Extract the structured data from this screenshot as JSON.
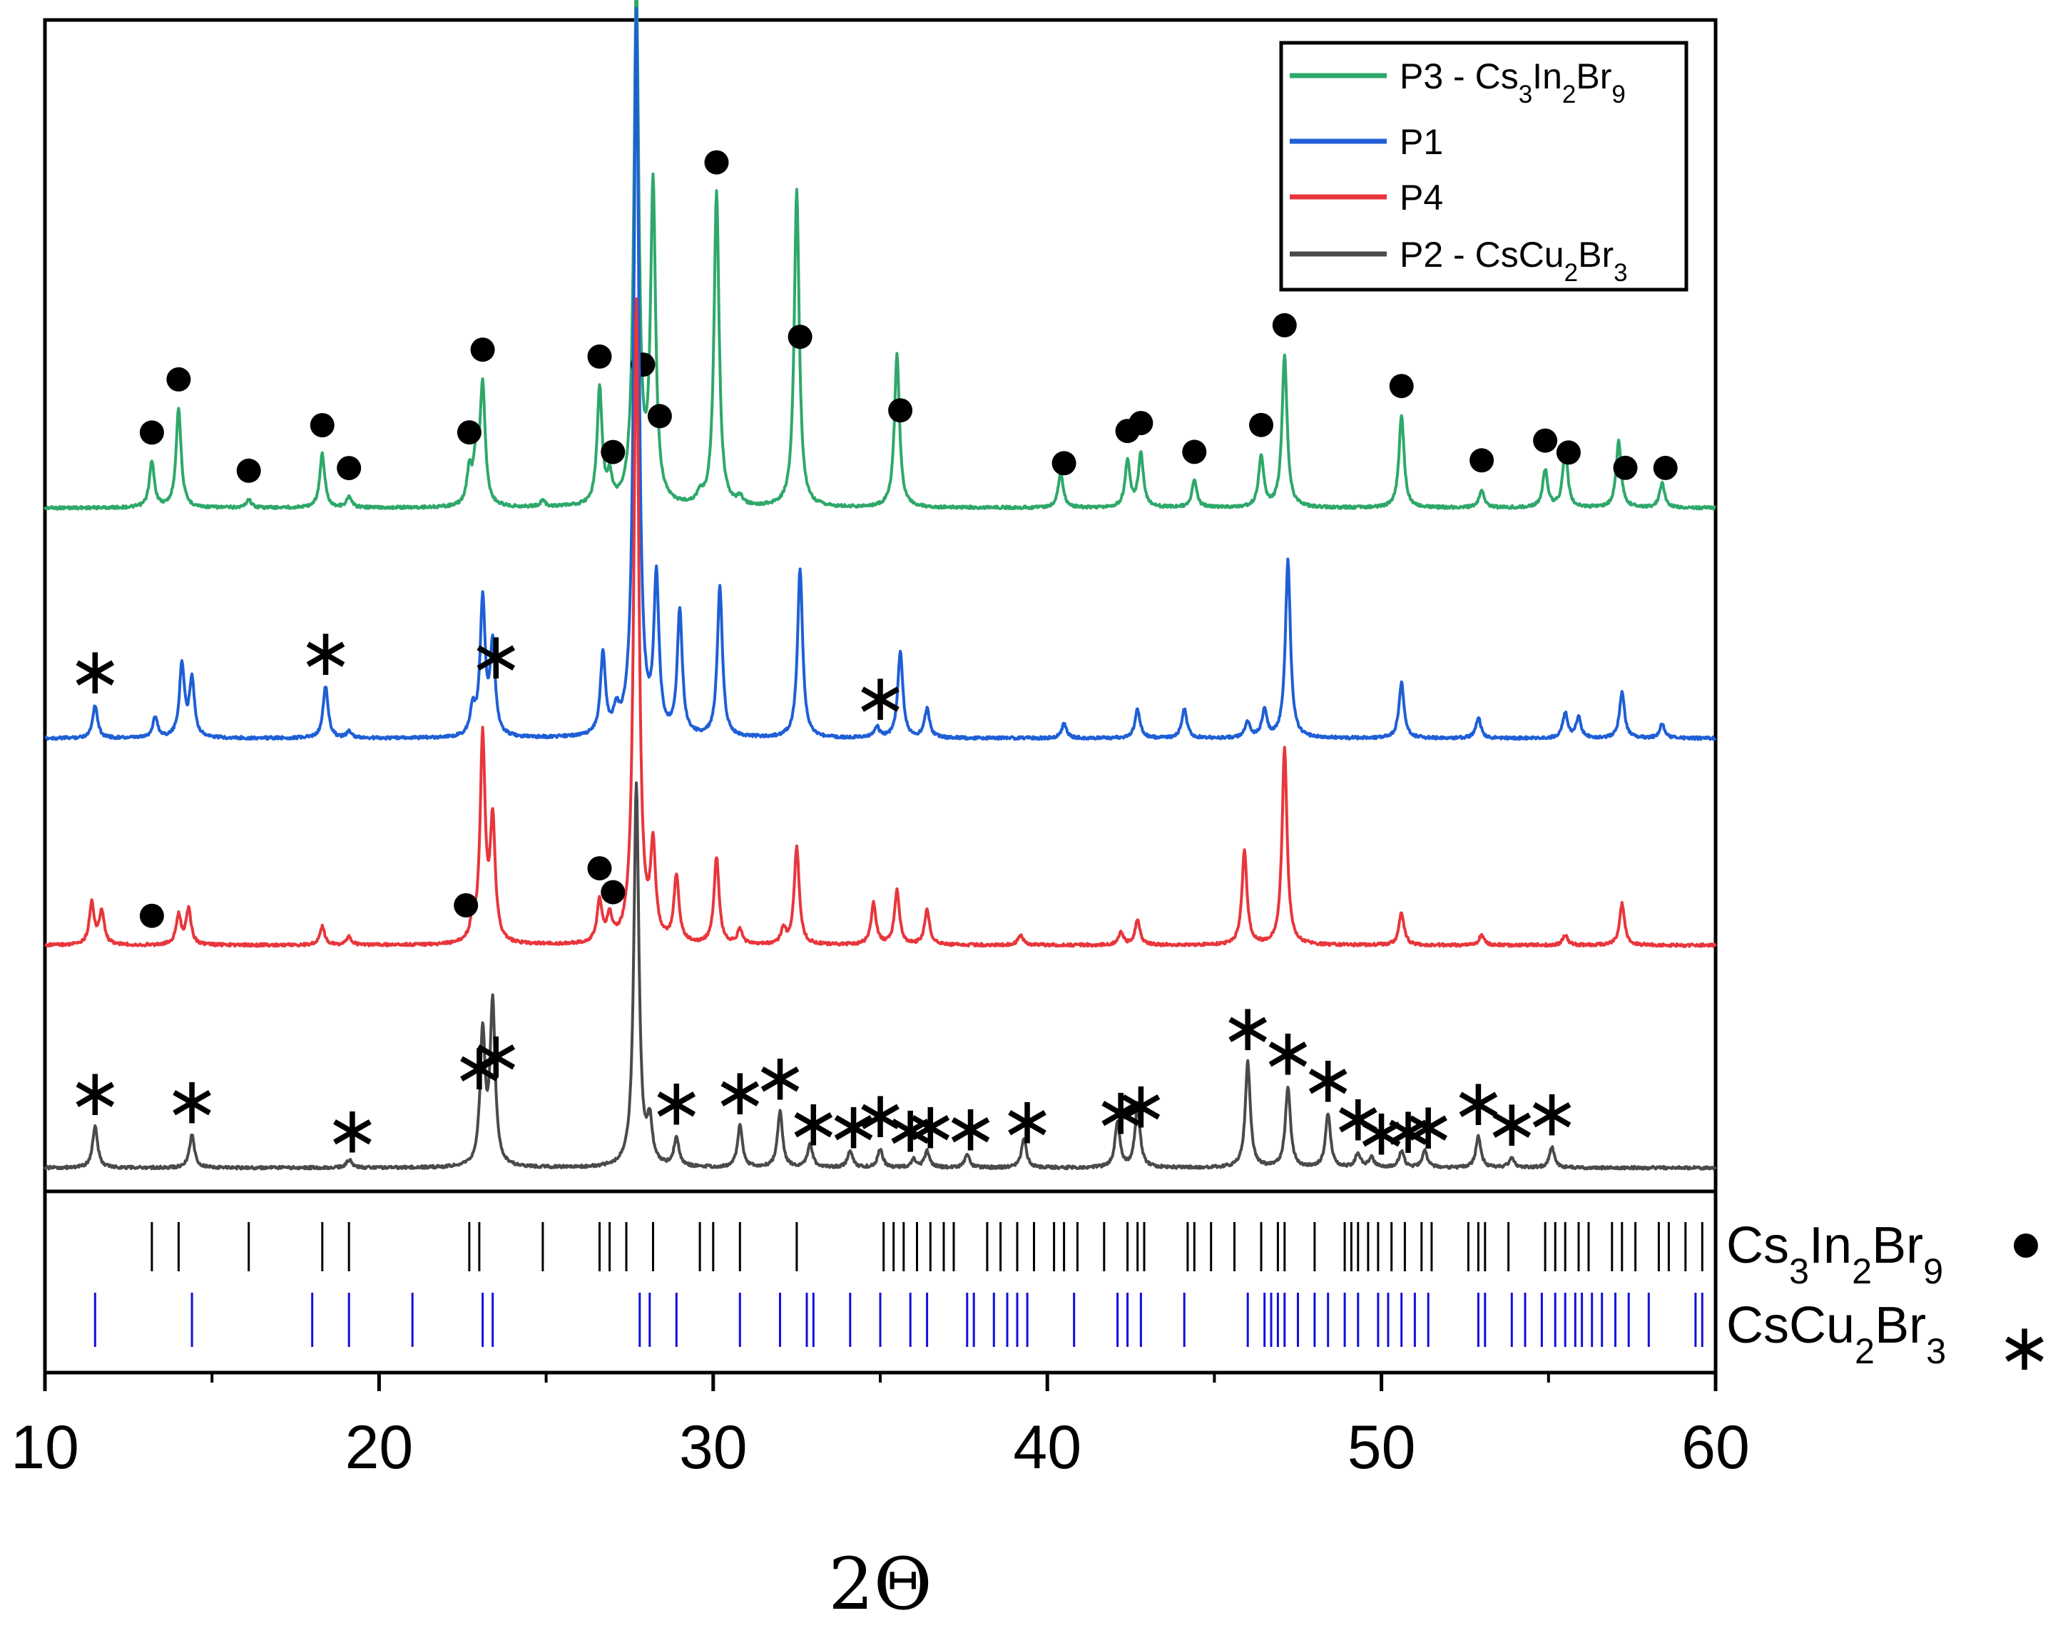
{
  "chart_data": {
    "type": "line",
    "title": "",
    "xlabel": "2Θ",
    "ylabel": "",
    "xlim": [
      10,
      60
    ],
    "xticks": [
      "10",
      "20",
      "30",
      "40",
      "50",
      "60"
    ],
    "legend_position": "top-right",
    "colors": {
      "P3": "#2ea86a",
      "P1": "#1f5fd6",
      "P4": "#e8363c",
      "P2": "#4a4a4a",
      "ref_in": "#000000",
      "ref_cu": "#1010e0"
    },
    "series": [
      {
        "key": "P3",
        "name": "P3 - Cs",
        "formula": [
          [
            "P3 - Cs",
            ""
          ],
          [
            "3",
            "sub"
          ],
          [
            "In",
            ""
          ],
          [
            "2",
            "sub"
          ],
          [
            "Br",
            ""
          ],
          [
            "9",
            "sub"
          ]
        ],
        "peaks": [
          [
            13.2,
            0.22
          ],
          [
            14.0,
            0.48
          ],
          [
            16.1,
            0.04
          ],
          [
            18.3,
            0.26
          ],
          [
            19.1,
            0.05
          ],
          [
            22.7,
            0.16
          ],
          [
            22.9,
            0.22
          ],
          [
            23.1,
            0.58
          ],
          [
            24.9,
            0.03
          ],
          [
            26.6,
            0.56
          ],
          [
            26.9,
            0.12
          ],
          [
            27.7,
            2.5
          ],
          [
            28.2,
            1.53
          ],
          [
            29.6,
            0.05
          ],
          [
            30.1,
            1.52
          ],
          [
            30.8,
            0.04
          ],
          [
            32.5,
            1.53
          ],
          [
            35.5,
            0.74
          ],
          [
            40.4,
            0.17
          ],
          [
            42.4,
            0.22
          ],
          [
            42.8,
            0.26
          ],
          [
            44.4,
            0.13
          ],
          [
            46.4,
            0.25
          ],
          [
            47.1,
            0.74
          ],
          [
            50.6,
            0.45
          ],
          [
            53.0,
            0.09
          ],
          [
            54.9,
            0.18
          ],
          [
            55.5,
            0.28
          ],
          [
            57.1,
            0.32
          ],
          [
            58.4,
            0.12
          ]
        ],
        "markers": [
          [
            13.2,
            "dot"
          ],
          [
            14.0,
            "dot"
          ],
          [
            16.1,
            "dot"
          ],
          [
            18.3,
            "dot"
          ],
          [
            19.1,
            "dot"
          ],
          [
            22.7,
            "dot"
          ],
          [
            23.1,
            "dot"
          ],
          [
            26.6,
            "dot"
          ],
          [
            27.0,
            "dot"
          ],
          [
            27.9,
            "dot"
          ],
          [
            28.4,
            "dot"
          ],
          [
            30.1,
            "dot"
          ],
          [
            32.6,
            "dot"
          ],
          [
            35.6,
            "dot"
          ],
          [
            40.5,
            "dot"
          ],
          [
            42.4,
            "dot"
          ],
          [
            42.8,
            "dot"
          ],
          [
            44.4,
            "dot"
          ],
          [
            46.4,
            "dot"
          ],
          [
            47.1,
            "dot"
          ],
          [
            50.6,
            "dot"
          ],
          [
            53.0,
            "dot"
          ],
          [
            54.9,
            "dot"
          ],
          [
            55.6,
            "dot"
          ],
          [
            57.3,
            "dot"
          ],
          [
            58.5,
            "dot"
          ]
        ]
      },
      {
        "key": "P1",
        "name": "P1",
        "formula": [
          [
            "P1",
            ""
          ]
        ],
        "peaks": [
          [
            11.5,
            0.16
          ],
          [
            13.3,
            0.1
          ],
          [
            14.1,
            0.35
          ],
          [
            14.4,
            0.28
          ],
          [
            18.4,
            0.25
          ],
          [
            19.1,
            0.03
          ],
          [
            22.8,
            0.13
          ],
          [
            23.1,
            0.66
          ],
          [
            23.4,
            0.44
          ],
          [
            26.7,
            0.39
          ],
          [
            27.1,
            0.1
          ],
          [
            27.7,
            3.5
          ],
          [
            28.3,
            0.74
          ],
          [
            29.0,
            0.6
          ],
          [
            30.2,
            0.73
          ],
          [
            32.6,
            0.82
          ],
          [
            34.9,
            0.05
          ],
          [
            35.6,
            0.42
          ],
          [
            36.4,
            0.14
          ],
          [
            40.5,
            0.07
          ],
          [
            42.7,
            0.14
          ],
          [
            44.1,
            0.14
          ],
          [
            46.0,
            0.08
          ],
          [
            46.5,
            0.13
          ],
          [
            47.2,
            0.86
          ],
          [
            50.6,
            0.27
          ],
          [
            52.9,
            0.1
          ],
          [
            55.5,
            0.12
          ],
          [
            55.9,
            0.1
          ],
          [
            57.2,
            0.22
          ],
          [
            58.4,
            0.07
          ]
        ],
        "markers": [
          [
            11.5,
            "star"
          ],
          [
            18.4,
            "star"
          ],
          [
            23.5,
            "star"
          ],
          [
            35.0,
            "star"
          ]
        ]
      },
      {
        "key": "P4",
        "name": "P4",
        "formula": [
          [
            "P4",
            ""
          ]
        ],
        "peaks": [
          [
            11.4,
            0.2
          ],
          [
            11.7,
            0.16
          ],
          [
            14.0,
            0.14
          ],
          [
            14.3,
            0.17
          ],
          [
            18.3,
            0.09
          ],
          [
            19.1,
            0.04
          ],
          [
            22.8,
            0.09
          ],
          [
            23.1,
            0.99
          ],
          [
            23.4,
            0.58
          ],
          [
            26.6,
            0.2
          ],
          [
            26.9,
            0.12
          ],
          [
            27.7,
            3.1
          ],
          [
            28.2,
            0.44
          ],
          [
            28.9,
            0.32
          ],
          [
            30.1,
            0.42
          ],
          [
            30.8,
            0.07
          ],
          [
            32.1,
            0.07
          ],
          [
            32.5,
            0.47
          ],
          [
            34.8,
            0.2
          ],
          [
            35.5,
            0.26
          ],
          [
            36.4,
            0.17
          ],
          [
            39.2,
            0.05
          ],
          [
            42.2,
            0.06
          ],
          [
            42.7,
            0.12
          ],
          [
            45.9,
            0.45
          ],
          [
            47.1,
            0.95
          ],
          [
            50.6,
            0.16
          ],
          [
            53.0,
            0.05
          ],
          [
            55.5,
            0.05
          ],
          [
            57.2,
            0.2
          ]
        ],
        "markers": [
          [
            13.2,
            "dot"
          ],
          [
            22.6,
            "dot"
          ],
          [
            26.6,
            "dot"
          ],
          [
            27.0,
            "dot"
          ]
        ]
      },
      {
        "key": "P2",
        "name": "P2 - CsCu",
        "formula": [
          [
            "P2 - CsCu",
            ""
          ],
          [
            "2",
            "sub"
          ],
          [
            "Br",
            ""
          ],
          [
            "3",
            "sub"
          ]
        ],
        "peaks": [
          [
            11.5,
            0.2
          ],
          [
            14.4,
            0.16
          ],
          [
            19.1,
            0.04
          ],
          [
            23.1,
            0.64
          ],
          [
            23.4,
            0.78
          ],
          [
            27.7,
            1.85
          ],
          [
            28.1,
            0.2
          ],
          [
            28.9,
            0.14
          ],
          [
            30.8,
            0.2
          ],
          [
            32.0,
            0.27
          ],
          [
            32.9,
            0.11
          ],
          [
            34.1,
            0.08
          ],
          [
            35.0,
            0.09
          ],
          [
            36.0,
            0.04
          ],
          [
            36.4,
            0.08
          ],
          [
            37.6,
            0.06
          ],
          [
            39.3,
            0.14
          ],
          [
            42.1,
            0.22
          ],
          [
            42.7,
            0.3
          ],
          [
            46.0,
            0.51
          ],
          [
            47.2,
            0.39
          ],
          [
            48.4,
            0.26
          ],
          [
            49.3,
            0.07
          ],
          [
            49.7,
            0.05
          ],
          [
            50.6,
            0.08
          ],
          [
            51.3,
            0.08
          ],
          [
            52.9,
            0.15
          ],
          [
            53.9,
            0.05
          ],
          [
            55.1,
            0.1
          ]
        ],
        "markers": [
          [
            11.5,
            "star"
          ],
          [
            14.4,
            "star"
          ],
          [
            19.2,
            "star"
          ],
          [
            23.0,
            "star"
          ],
          [
            23.5,
            "star"
          ],
          [
            28.9,
            "star"
          ],
          [
            30.8,
            "star"
          ],
          [
            32.0,
            "star"
          ],
          [
            33.0,
            "star"
          ],
          [
            34.2,
            "star"
          ],
          [
            35.0,
            "star"
          ],
          [
            35.9,
            "star"
          ],
          [
            36.5,
            "star"
          ],
          [
            37.7,
            "star"
          ],
          [
            39.4,
            "star"
          ],
          [
            42.2,
            "star"
          ],
          [
            42.8,
            "star"
          ],
          [
            46.0,
            "star"
          ],
          [
            47.2,
            "star"
          ],
          [
            48.4,
            "star"
          ],
          [
            49.3,
            "star"
          ],
          [
            50.0,
            "star"
          ],
          [
            50.8,
            "star"
          ],
          [
            51.4,
            "star"
          ],
          [
            52.9,
            "star"
          ],
          [
            53.9,
            "star"
          ],
          [
            55.1,
            "star"
          ]
        ]
      }
    ],
    "reference_patterns": [
      {
        "key": "ref_in",
        "name": "Cs3In2Br9",
        "formula": [
          [
            "Cs",
            ""
          ],
          [
            "3",
            "sub"
          ],
          [
            "In",
            ""
          ],
          [
            "2",
            "sub"
          ],
          [
            "Br",
            ""
          ],
          [
            "9",
            "sub"
          ]
        ],
        "marker": "dot",
        "positions": [
          13.2,
          14.0,
          16.1,
          18.3,
          19.1,
          22.7,
          23.0,
          24.9,
          26.6,
          26.9,
          27.4,
          28.2,
          29.6,
          30.0,
          30.8,
          32.5,
          35.1,
          35.4,
          35.7,
          36.1,
          36.5,
          36.9,
          37.2,
          38.2,
          38.6,
          39.1,
          39.6,
          40.2,
          40.5,
          40.9,
          41.7,
          42.4,
          42.7,
          42.9,
          44.2,
          44.4,
          44.9,
          45.6,
          46.4,
          46.9,
          47.1,
          48.0,
          48.9,
          49.1,
          49.3,
          49.6,
          49.9,
          50.3,
          50.7,
          51.2,
          51.5,
          52.6,
          52.9,
          53.1,
          53.8,
          54.9,
          55.2,
          55.5,
          55.9,
          56.2,
          56.9,
          57.2,
          57.6,
          58.3,
          58.6,
          59.1,
          59.6
        ]
      },
      {
        "key": "ref_cu",
        "name": "CsCu2Br3",
        "formula": [
          [
            "CsCu",
            ""
          ],
          [
            "2",
            "sub"
          ],
          [
            "Br",
            ""
          ],
          [
            "3",
            "sub"
          ]
        ],
        "marker": "star",
        "positions": [
          11.5,
          14.4,
          18.0,
          19.1,
          21.0,
          23.1,
          23.4,
          27.8,
          28.1,
          28.9,
          30.8,
          32.0,
          32.8,
          33.0,
          34.1,
          35.0,
          35.9,
          36.4,
          37.6,
          37.8,
          38.4,
          38.8,
          39.1,
          39.4,
          40.8,
          42.1,
          42.4,
          42.8,
          44.1,
          46.0,
          46.5,
          46.7,
          46.9,
          47.1,
          47.5,
          48.0,
          48.4,
          48.9,
          49.3,
          49.9,
          50.2,
          50.6,
          51.0,
          51.4,
          52.9,
          53.1,
          53.9,
          54.3,
          54.8,
          55.2,
          55.5,
          55.8,
          56.0,
          56.3,
          56.6,
          57.0,
          57.4,
          58.0,
          59.4,
          59.6
        ]
      }
    ]
  }
}
